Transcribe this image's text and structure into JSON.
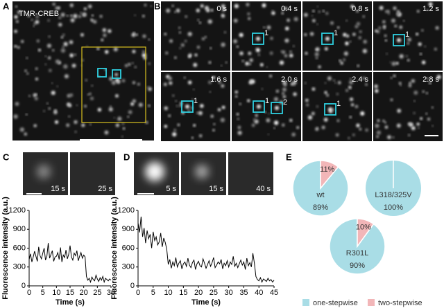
{
  "panel_labels": [
    "A",
    "B",
    "C",
    "D",
    "E"
  ],
  "panel_a": {
    "label": "TMR-CREB"
  },
  "panel_b": {
    "frames": [
      {
        "time": "0 s",
        "spots": []
      },
      {
        "time": "0.4 s",
        "spots": [
          "1"
        ]
      },
      {
        "time": "0.8 s",
        "spots": [
          "1"
        ]
      },
      {
        "time": "1.2 s",
        "spots": [
          "1"
        ]
      },
      {
        "time": "1.6 s",
        "spots": [
          "1"
        ]
      },
      {
        "time": "2.0 s",
        "spots": [
          "1",
          "2"
        ]
      },
      {
        "time": "2.4 s",
        "spots": [
          "1"
        ]
      },
      {
        "time": "2.8 s",
        "spots": []
      }
    ]
  },
  "panel_c": {
    "frames": [
      "15 s",
      "25 s"
    ]
  },
  "panel_d": {
    "frames": [
      "5 s",
      "15 s",
      "40 s"
    ]
  },
  "legend": [
    {
      "name": "one-stepwise",
      "color": "#a9dde6"
    },
    {
      "name": "two-stepwise",
      "color": "#f2b6b8"
    }
  ],
  "chart_data": [
    {
      "type": "line",
      "x_label": "Time (s)",
      "y_label": "Fluorescence intensity (a.u.)",
      "color": "#000000",
      "xlim": [
        0,
        30
      ],
      "xticks": [
        0,
        5,
        10,
        15,
        20,
        25,
        30
      ],
      "ylim": [
        0,
        1200
      ],
      "yticks": [
        0,
        300,
        600,
        900,
        1200
      ],
      "x": [
        0,
        0.5,
        1,
        1.5,
        2,
        2.5,
        3,
        3.5,
        4,
        4.5,
        5,
        5.5,
        6,
        6.5,
        7,
        7.5,
        8,
        8.5,
        9,
        9.5,
        10,
        10.5,
        11,
        11.5,
        12,
        12.5,
        13,
        13.5,
        14,
        14.5,
        15,
        15.5,
        16,
        16.5,
        17,
        17.5,
        18,
        18.5,
        19,
        19.5,
        20,
        20.5,
        21,
        21.5,
        22,
        22.5,
        23,
        23.5,
        24,
        24.5,
        25,
        25.5,
        26,
        26.5,
        27,
        27.5,
        28,
        28.5,
        29,
        29.5,
        30
      ],
      "values": [
        420,
        510,
        380,
        460,
        550,
        470,
        390,
        620,
        480,
        430,
        520,
        600,
        410,
        470,
        680,
        440,
        500,
        560,
        390,
        460,
        470,
        530,
        420,
        610,
        380,
        490,
        450,
        570,
        430,
        500,
        640,
        460,
        410,
        520,
        480,
        560,
        400,
        470,
        530,
        440,
        490,
        460,
        150,
        90,
        120,
        60,
        140,
        100,
        80,
        170,
        110,
        70,
        130,
        90,
        150,
        60,
        120,
        100,
        80,
        110,
        90
      ]
    },
    {
      "type": "line",
      "x_label": "Time (s)",
      "y_label": "Fluorescence intensity (a.u.)",
      "color": "#000000",
      "xlim": [
        0,
        45
      ],
      "xticks": [
        0,
        5,
        10,
        15,
        20,
        25,
        30,
        35,
        40,
        45
      ],
      "ylim": [
        0,
        1200
      ],
      "yticks": [
        0,
        300,
        600,
        900,
        1200
      ],
      "x": [
        0,
        0.5,
        1,
        1.5,
        2,
        2.5,
        3,
        3.5,
        4,
        4.5,
        5,
        5.5,
        6,
        6.5,
        7,
        7.5,
        8,
        8.5,
        9,
        9.5,
        10,
        10.5,
        11,
        11.5,
        12,
        12.5,
        13,
        13.5,
        14,
        14.5,
        15,
        15.5,
        16,
        16.5,
        17,
        17.5,
        18,
        18.5,
        19,
        19.5,
        20,
        20.5,
        21,
        21.5,
        22,
        22.5,
        23,
        23.5,
        24,
        24.5,
        25,
        25.5,
        26,
        26.5,
        27,
        27.5,
        28,
        28.5,
        29,
        29.5,
        30,
        30.5,
        31,
        31.5,
        32,
        32.5,
        33,
        33.5,
        34,
        34.5,
        35,
        35.5,
        36,
        36.5,
        37,
        37.5,
        38,
        38.5,
        39,
        39.5,
        40,
        40.5,
        41,
        41.5,
        42,
        42.5,
        43,
        43.5,
        44,
        44.5,
        45
      ],
      "values": [
        1000,
        850,
        1100,
        780,
        920,
        680,
        880,
        750,
        820,
        600,
        860,
        720,
        780,
        650,
        700,
        840,
        620,
        760,
        690,
        580,
        340,
        420,
        280,
        380,
        320,
        450,
        300,
        360,
        400,
        270,
        350,
        380,
        310,
        440,
        330,
        290,
        370,
        410,
        260,
        350,
        390,
        320,
        300,
        430,
        360,
        280,
        340,
        400,
        310,
        370,
        450,
        290,
        330,
        380,
        350,
        420,
        270,
        360,
        320,
        400,
        300,
        380,
        340,
        470,
        310,
        360,
        290,
        350,
        410,
        330,
        380,
        260,
        440,
        320,
        370,
        300,
        520,
        360,
        150,
        100,
        80,
        130,
        60,
        110,
        90,
        70,
        120,
        80,
        100,
        60,
        90
      ]
    },
    {
      "type": "pie",
      "name": "wt",
      "values": [
        89,
        11
      ],
      "value_labels": [
        "89%",
        "11%"
      ]
    },
    {
      "type": "pie",
      "name": "L318/325V",
      "values": [
        100,
        0
      ],
      "value_labels": [
        "100%",
        null
      ]
    },
    {
      "type": "pie",
      "name": "R301L",
      "values": [
        90,
        10
      ],
      "value_labels": [
        "90%",
        "10%"
      ]
    }
  ]
}
